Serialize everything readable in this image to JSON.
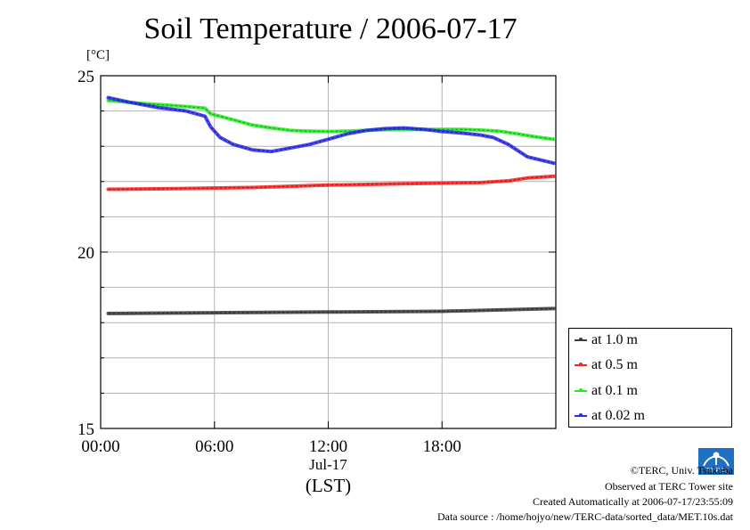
{
  "chart_data": {
    "type": "line",
    "title": "Soil Temperature / 2006-07-17",
    "ylabel": "[°C]",
    "xlabel": "(LST)",
    "x_date_label": "Jul-17",
    "ylim": [
      15,
      25
    ],
    "yticks": [
      15,
      20,
      25
    ],
    "yminor_step": 1,
    "xlim_hours": [
      0,
      24
    ],
    "xticks": [
      {
        "hour": 0,
        "label": "00:00"
      },
      {
        "hour": 6,
        "label": "06:00"
      },
      {
        "hour": 12,
        "label": "12:00"
      },
      {
        "hour": 18,
        "label": "18:00"
      }
    ],
    "grid": true,
    "legend_position": "right-bottom",
    "series": [
      {
        "name": "at 1.0 m",
        "color": "#3a3a3a",
        "points": [
          [
            0.4,
            18.26
          ],
          [
            6,
            18.28
          ],
          [
            12,
            18.3
          ],
          [
            18,
            18.32
          ],
          [
            23.9,
            18.4
          ]
        ]
      },
      {
        "name": "at 0.5 m",
        "color": "#ff2020",
        "points": [
          [
            0.4,
            21.78
          ],
          [
            4,
            21.8
          ],
          [
            8,
            21.83
          ],
          [
            12,
            21.9
          ],
          [
            16,
            21.94
          ],
          [
            20,
            21.97
          ],
          [
            21.5,
            22.02
          ],
          [
            22.5,
            22.1
          ],
          [
            23.9,
            22.15
          ]
        ]
      },
      {
        "name": "at 0.1 m",
        "color": "#20ee20",
        "points": [
          [
            0.4,
            24.3
          ],
          [
            2,
            24.22
          ],
          [
            4,
            24.15
          ],
          [
            5.5,
            24.08
          ],
          [
            5.8,
            23.92
          ],
          [
            7,
            23.75
          ],
          [
            8,
            23.6
          ],
          [
            9,
            23.52
          ],
          [
            10,
            23.45
          ],
          [
            11,
            23.43
          ],
          [
            12,
            23.42
          ],
          [
            13,
            23.43
          ],
          [
            14,
            23.45
          ],
          [
            15,
            23.47
          ],
          [
            17,
            23.48
          ],
          [
            19,
            23.48
          ],
          [
            20,
            23.46
          ],
          [
            21,
            23.43
          ],
          [
            22,
            23.35
          ],
          [
            23,
            23.26
          ],
          [
            23.9,
            23.2
          ]
        ]
      },
      {
        "name": "at 0.02 m",
        "color": "#2a2af0",
        "points": [
          [
            0.4,
            24.38
          ],
          [
            1.5,
            24.25
          ],
          [
            3,
            24.1
          ],
          [
            4.5,
            24.0
          ],
          [
            5.5,
            23.85
          ],
          [
            5.8,
            23.55
          ],
          [
            6.3,
            23.25
          ],
          [
            7,
            23.05
          ],
          [
            8,
            22.9
          ],
          [
            9,
            22.85
          ],
          [
            10,
            22.95
          ],
          [
            11,
            23.05
          ],
          [
            12,
            23.2
          ],
          [
            13,
            23.35
          ],
          [
            14,
            23.45
          ],
          [
            15,
            23.5
          ],
          [
            16,
            23.52
          ],
          [
            17,
            23.48
          ],
          [
            18,
            23.42
          ],
          [
            19,
            23.38
          ],
          [
            20,
            23.32
          ],
          [
            20.7,
            23.25
          ],
          [
            21.5,
            23.05
          ],
          [
            22.5,
            22.7
          ],
          [
            23.9,
            22.52
          ]
        ]
      }
    ]
  },
  "legend": {
    "items": [
      "at 1.0 m",
      "at 0.5 m",
      "at 0.1 m",
      "at 0.02 m"
    ]
  },
  "footer": {
    "copyright": "©TERC, Univ. Tsukuba",
    "observed": "Observed at TERC Tower site",
    "created": "Created Automatically at 2006-07-17/23:55:09",
    "source": "Data source : /home/hojyo/new/TERC-data/sorted_data/MET.10s.dat",
    "logo_text": "TERC"
  }
}
